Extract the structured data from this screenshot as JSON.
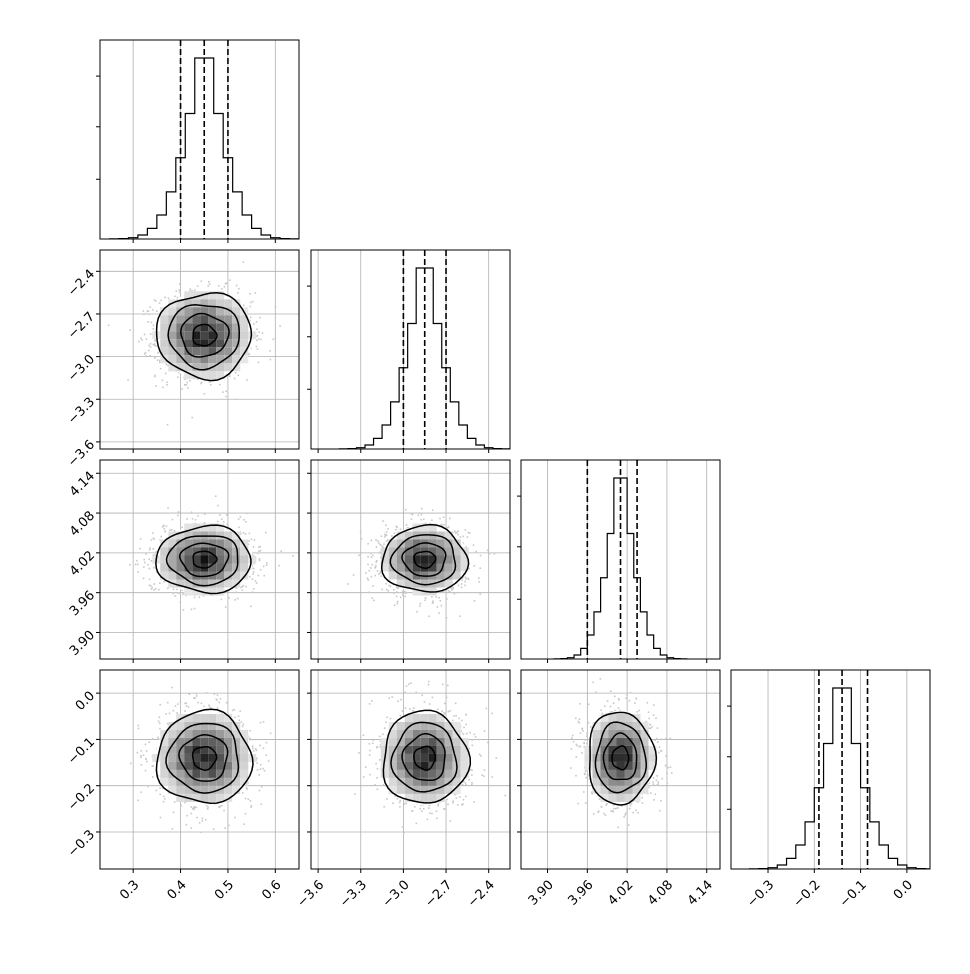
{
  "chart_data": {
    "type": "corner",
    "title": "",
    "grid": true,
    "parameters": [
      {
        "index": 0,
        "range": [
          0.23,
          0.65
        ],
        "ticks": [
          0.3,
          0.4,
          0.5,
          0.6
        ],
        "tick_labels": [
          "0.3",
          "0.4",
          "0.5",
          "0.6"
        ],
        "mean": 0.45,
        "sigma": 0.05,
        "quantiles": [
          0.4,
          0.45,
          0.5
        ]
      },
      {
        "index": 1,
        "range": [
          -3.65,
          -2.25
        ],
        "ticks": [
          -3.6,
          -3.3,
          -3.0,
          -2.7,
          -2.4
        ],
        "tick_labels": [
          "−3.6",
          "−3.3",
          "−3.0",
          "−2.7",
          "−2.4"
        ],
        "mean": -2.85,
        "sigma": 0.15,
        "quantiles": [
          -3.0,
          -2.85,
          -2.7
        ]
      },
      {
        "index": 2,
        "range": [
          3.86,
          4.16
        ],
        "ticks": [
          3.9,
          3.96,
          4.02,
          4.08,
          4.14
        ],
        "tick_labels": [
          "3.90",
          "3.96",
          "4.02",
          "4.08",
          "4.14"
        ],
        "mean": 4.01,
        "sigma": 0.025,
        "quantiles": [
          3.96,
          4.01,
          4.035
        ]
      },
      {
        "index": 3,
        "range": [
          -0.38,
          0.05
        ],
        "ticks": [
          -0.3,
          -0.2,
          -0.1,
          0.0
        ],
        "tick_labels": [
          "−0.3",
          "−0.2",
          "−0.1",
          "0.0"
        ],
        "mean": -0.14,
        "sigma": 0.05,
        "quantiles": [
          -0.19,
          -0.14,
          -0.085
        ]
      }
    ],
    "histogram_bins": 20,
    "contour_sigma_levels": [
      0.5,
      1.0,
      1.5,
      2.0
    ],
    "colors": {
      "line": "#000000",
      "grid": "#b0b0b0",
      "scatter": "#c8c8c8",
      "dashed_quantile": "#000000"
    }
  }
}
